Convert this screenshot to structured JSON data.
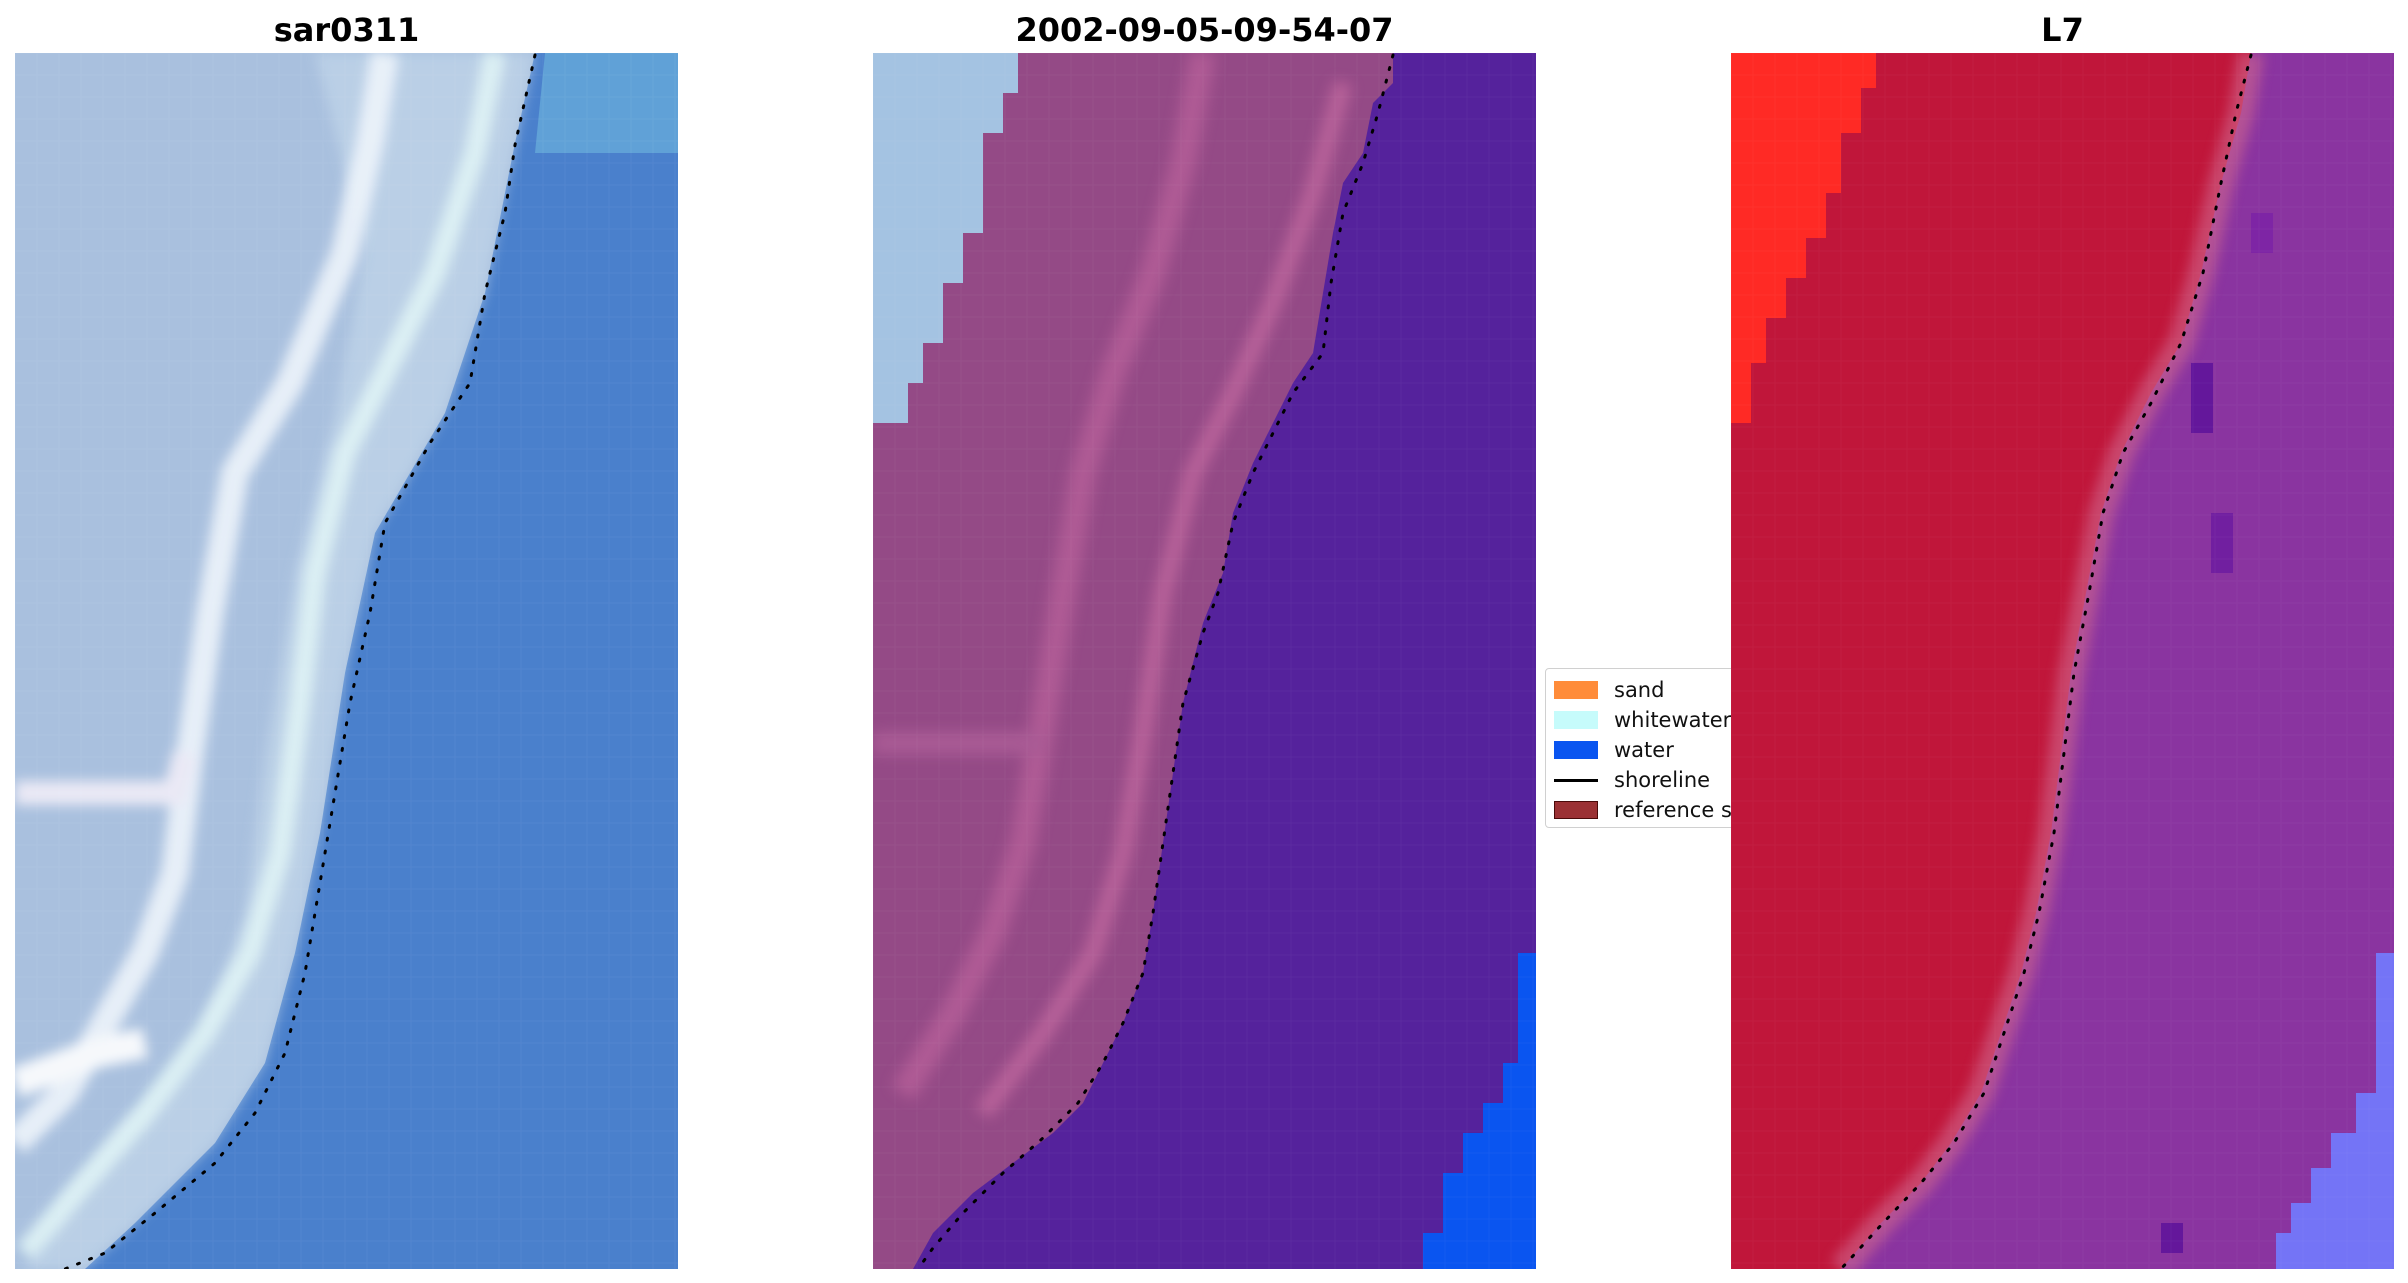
{
  "panels": [
    {
      "title": "sar0311"
    },
    {
      "title": "2002-09-05-09-54-07"
    },
    {
      "title": "L7"
    }
  ],
  "legend": {
    "items": [
      {
        "label": "sand",
        "color": "#ff8c3a",
        "kind": "patch"
      },
      {
        "label": "whitewater",
        "color": "#c6fbfb",
        "kind": "patch"
      },
      {
        "label": "water",
        "color": "#0a55f0",
        "kind": "patch"
      },
      {
        "label": "shoreline",
        "color": "#000000",
        "kind": "line"
      },
      {
        "label": "reference shoreline buffer",
        "color": "#9b3134",
        "kind": "patch"
      }
    ]
  },
  "colors": {
    "rgb_sand": "#a9c0de",
    "rgb_water": "#4a80cc",
    "rgb_whitewater": "#d8ecf2",
    "classified_land": "#944a86",
    "classified_water": "#55229c",
    "classified_bright_water": "#0a55f0",
    "classified_whitewater": "#a4c3e2",
    "ndwi_land": "#c0163a",
    "ndwi_high": "#ff2a25",
    "ndwi_water": "#8a34a0",
    "ndwi_blue": "#7474f6",
    "shoreline": "#000000"
  }
}
